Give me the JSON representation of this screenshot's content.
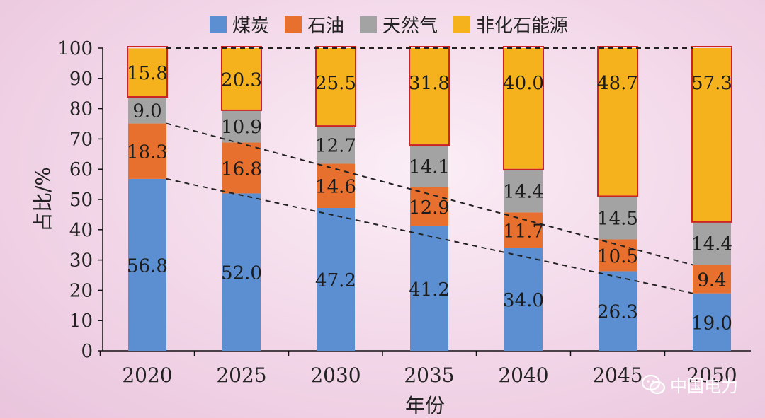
{
  "chart_data": {
    "type": "bar",
    "stacked": true,
    "categories": [
      "2020",
      "2025",
      "2030",
      "2035",
      "2040",
      "2045",
      "2050"
    ],
    "series": [
      {
        "name": "煤炭",
        "color": "#5b8fd1",
        "values": [
          56.8,
          52.0,
          47.2,
          41.2,
          34.0,
          26.3,
          19.0
        ],
        "labels": [
          "56.8",
          "52.0",
          "47.2",
          "41.2",
          "34.0",
          "26.3",
          "19.0"
        ]
      },
      {
        "name": "石油",
        "color": "#e8702f",
        "values": [
          18.3,
          16.8,
          14.6,
          12.9,
          11.7,
          10.5,
          9.4
        ],
        "labels": [
          "18.3",
          "16.8",
          "14.6",
          "12.9",
          "11.7",
          "10.5",
          "9.4"
        ]
      },
      {
        "name": "天然气",
        "color": "#a3a3a3",
        "values": [
          9.0,
          10.9,
          12.7,
          14.1,
          14.4,
          14.5,
          14.4
        ],
        "labels": [
          "9.0",
          "10.9",
          "12.7",
          "14.1",
          "14.4",
          "14.5",
          "14.4"
        ]
      },
      {
        "name": "非化石能源",
        "color": "#f6b21d",
        "values": [
          15.8,
          20.3,
          25.5,
          31.8,
          40.0,
          48.7,
          57.3
        ],
        "labels": [
          "15.8",
          "20.3",
          "25.5",
          "31.8",
          "40.0",
          "48.7",
          "57.3"
        ]
      }
    ],
    "xlabel": "年份",
    "ylabel": "占比/%",
    "ylim": [
      0,
      100
    ],
    "yticks": [
      "0",
      "10",
      "20",
      "30",
      "40",
      "50",
      "60",
      "70",
      "80",
      "90",
      "100"
    ],
    "grid": false,
    "legend_position": "top",
    "highlight_series": "非化石能源",
    "highlight_color": "#cc2222",
    "trend_lines": [
      {
        "series_boundary": "煤炭 top",
        "from": "2020",
        "to": "2050"
      },
      {
        "series_boundary": "石油 top",
        "from": "2020",
        "to": "2050"
      },
      {
        "series_boundary": "100 reference",
        "from": "2020",
        "to": "2050"
      }
    ]
  },
  "watermark": {
    "text": "中国电力",
    "icon": "wechat-icon"
  }
}
